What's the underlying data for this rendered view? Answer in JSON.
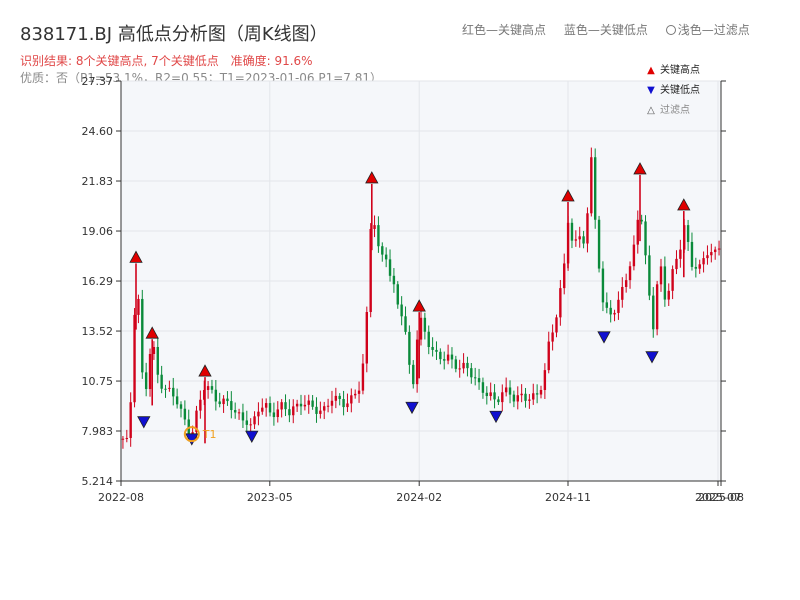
{
  "header": {
    "title": "838171.BJ 高低点分析图（周K线图）",
    "legend_red": "红色—关键高点",
    "legend_blue": "蓝色—关键低点",
    "legend_light": "浅色—过滤点",
    "stats_result": "识别结果: 8个关键高点, 7个关键低点",
    "stats_accuracy": "准确度: 91.6%",
    "quality": "优质：否（P1=53.1%，R2=0.55；T1=2023-01-06 P1=7.81）"
  },
  "legend": {
    "high": "关键高点",
    "low": "关键低点",
    "filtered": "过滤点"
  },
  "colors": {
    "up": "#d0021b",
    "down": "#0a8a3a",
    "high_marker": "#e00000",
    "low_marker": "#1010d0",
    "t1_ring": "#f0a020",
    "plot_bg": "#f5f7fa",
    "grid": "#e3e6ea"
  },
  "chart_data": {
    "type": "candlestick",
    "period": "weekly",
    "yticks": [
      "5.214",
      "7.983",
      "10.75",
      "13.52",
      "16.29",
      "19.06",
      "21.83",
      "24.60",
      "27.37"
    ],
    "ylim": [
      5.214,
      27.37
    ],
    "xticks": [
      "2022-08",
      "2023-05",
      "2024-02",
      "2024-11",
      "2025-07",
      "2025-08"
    ],
    "xlim": [
      0,
      1
    ],
    "xtick_positions": [
      0.0,
      0.248,
      0.497,
      0.745,
      0.995,
      1.0
    ],
    "t1_label": "T1",
    "t1_point": {
      "x": 0.118,
      "y": 7.81
    },
    "key_highs": [
      {
        "x": 0.025,
        "y": 17.6
      },
      {
        "x": 0.052,
        "y": 13.4
      },
      {
        "x": 0.14,
        "y": 11.3
      },
      {
        "x": 0.418,
        "y": 22.0
      },
      {
        "x": 0.497,
        "y": 14.9
      },
      {
        "x": 0.745,
        "y": 21.0
      },
      {
        "x": 0.865,
        "y": 22.5
      },
      {
        "x": 0.938,
        "y": 20.5
      }
    ],
    "key_lows": [
      {
        "x": 0.038,
        "y": 8.5
      },
      {
        "x": 0.118,
        "y": 7.55
      },
      {
        "x": 0.218,
        "y": 7.7
      },
      {
        "x": 0.485,
        "y": 9.3
      },
      {
        "x": 0.625,
        "y": 8.8
      },
      {
        "x": 0.805,
        "y": 13.2
      },
      {
        "x": 0.885,
        "y": 12.1
      }
    ],
    "key_points_filtered": [],
    "price_path": [
      [
        0.0,
        7.5
      ],
      [
        0.01,
        7.3
      ],
      [
        0.018,
        10.4
      ],
      [
        0.025,
        17.0
      ],
      [
        0.032,
        14.0
      ],
      [
        0.038,
        9.0
      ],
      [
        0.045,
        11.5
      ],
      [
        0.052,
        13.0
      ],
      [
        0.06,
        11.2
      ],
      [
        0.07,
        10.5
      ],
      [
        0.08,
        10.2
      ],
      [
        0.09,
        9.8
      ],
      [
        0.1,
        9.0
      ],
      [
        0.11,
        8.3
      ],
      [
        0.118,
        7.9
      ],
      [
        0.125,
        8.8
      ],
      [
        0.132,
        9.6
      ],
      [
        0.14,
        10.5
      ],
      [
        0.15,
        10.2
      ],
      [
        0.16,
        9.8
      ],
      [
        0.17,
        9.6
      ],
      [
        0.18,
        9.4
      ],
      [
        0.19,
        9.0
      ],
      [
        0.2,
        8.8
      ],
      [
        0.21,
        8.6
      ],
      [
        0.218,
        8.1
      ],
      [
        0.23,
        9.2
      ],
      [
        0.24,
        9.5
      ],
      [
        0.25,
        9.0
      ],
      [
        0.26,
        9.1
      ],
      [
        0.27,
        9.3
      ],
      [
        0.28,
        9.0
      ],
      [
        0.29,
        9.4
      ],
      [
        0.3,
        9.6
      ],
      [
        0.31,
        9.4
      ],
      [
        0.32,
        9.2
      ],
      [
        0.33,
        9.1
      ],
      [
        0.34,
        9.3
      ],
      [
        0.35,
        9.8
      ],
      [
        0.36,
        9.6
      ],
      [
        0.37,
        9.5
      ],
      [
        0.38,
        9.7
      ],
      [
        0.39,
        10.1
      ],
      [
        0.4,
        10.5
      ],
      [
        0.408,
        13.0
      ],
      [
        0.418,
        20.8
      ],
      [
        0.425,
        19.0
      ],
      [
        0.432,
        17.5
      ],
      [
        0.44,
        18.0
      ],
      [
        0.448,
        16.5
      ],
      [
        0.455,
        15.8
      ],
      [
        0.462,
        15.0
      ],
      [
        0.47,
        14.5
      ],
      [
        0.478,
        12.5
      ],
      [
        0.485,
        9.9
      ],
      [
        0.492,
        12.5
      ],
      [
        0.497,
        14.2
      ],
      [
        0.505,
        13.6
      ],
      [
        0.515,
        12.8
      ],
      [
        0.525,
        12.2
      ],
      [
        0.535,
        11.9
      ],
      [
        0.545,
        12.0
      ],
      [
        0.555,
        11.8
      ],
      [
        0.565,
        11.6
      ],
      [
        0.575,
        11.5
      ],
      [
        0.585,
        11.0
      ],
      [
        0.595,
        10.6
      ],
      [
        0.605,
        10.3
      ],
      [
        0.615,
        10.0
      ],
      [
        0.625,
        9.4
      ],
      [
        0.635,
        10.1
      ],
      [
        0.645,
        10.3
      ],
      [
        0.655,
        9.9
      ],
      [
        0.665,
        9.8
      ],
      [
        0.675,
        9.7
      ],
      [
        0.685,
        9.9
      ],
      [
        0.695,
        10.1
      ],
      [
        0.705,
        11.0
      ],
      [
        0.712,
        12.5
      ],
      [
        0.72,
        13.5
      ],
      [
        0.728,
        14.8
      ],
      [
        0.735,
        16.5
      ],
      [
        0.74,
        17.5
      ],
      [
        0.745,
        19.8
      ],
      [
        0.752,
        18.5
      ],
      [
        0.76,
        18.2
      ],
      [
        0.768,
        19.0
      ],
      [
        0.775,
        18.0
      ],
      [
        0.782,
        24.0
      ],
      [
        0.79,
        20.0
      ],
      [
        0.797,
        17.0
      ],
      [
        0.805,
        14.2
      ],
      [
        0.812,
        14.8
      ],
      [
        0.82,
        14.5
      ],
      [
        0.828,
        15.0
      ],
      [
        0.835,
        16.0
      ],
      [
        0.842,
        16.5
      ],
      [
        0.85,
        17.0
      ],
      [
        0.857,
        18.5
      ],
      [
        0.865,
        21.0
      ],
      [
        0.872,
        18.0
      ],
      [
        0.878,
        17.0
      ],
      [
        0.885,
        12.9
      ],
      [
        0.892,
        15.8
      ],
      [
        0.9,
        16.8
      ],
      [
        0.908,
        15.0
      ],
      [
        0.915,
        16.5
      ],
      [
        0.922,
        17.2
      ],
      [
        0.93,
        17.6
      ],
      [
        0.938,
        19.5
      ],
      [
        0.945,
        18.2
      ],
      [
        0.952,
        17.0
      ],
      [
        0.96,
        17.4
      ],
      [
        0.968,
        17.2
      ],
      [
        0.975,
        17.6
      ],
      [
        0.982,
        18.0
      ],
      [
        0.99,
        17.8
      ],
      [
        1.0,
        18.1
      ]
    ]
  }
}
